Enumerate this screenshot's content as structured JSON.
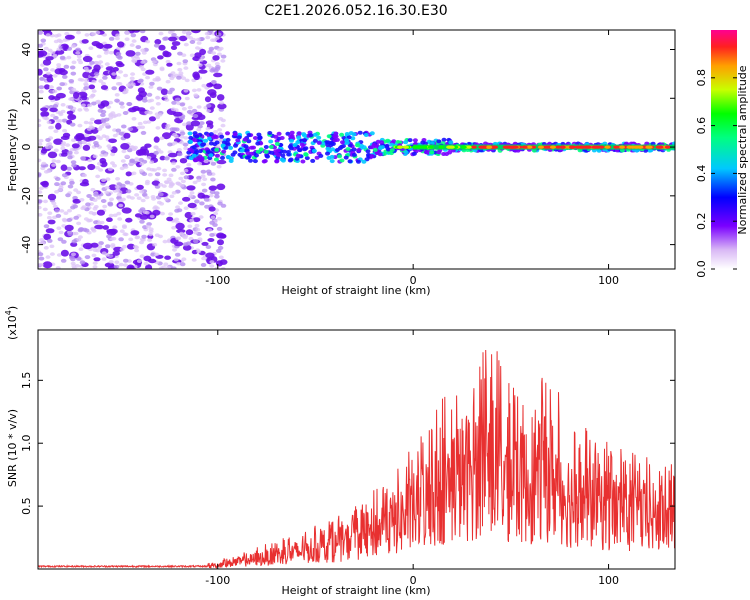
{
  "title": "C2E1.2026.052.16.30.E30",
  "chart_data": [
    {
      "type": "heatmap",
      "title": "C2E1.2026.052.16.30.E30",
      "xlabel": "Height of straight line (km)",
      "ylabel": "Frequency (Hz)",
      "xlim": [
        -192,
        134
      ],
      "ylim": [
        -50,
        48
      ],
      "xticks": [
        -100,
        0,
        100
      ],
      "yticks": [
        -40,
        -20,
        0,
        20,
        40
      ],
      "colorbar": {
        "label": "Normalized spectral amplitude",
        "range": [
          0.0,
          1.0
        ],
        "ticks": [
          "0.0",
          "0.2",
          "0.4",
          "0.6",
          "0.8"
        ]
      },
      "features": {
        "noise_region_x": [
          -192,
          -105
        ],
        "signal_center_freq": 0,
        "signal_region_x": [
          -115,
          134
        ]
      }
    },
    {
      "type": "line",
      "xlabel": "Height of straight line (km)",
      "ylabel": "SNR (10 * v/v)",
      "multiplier": "(x10",
      "multiplier_exp": "4",
      "xlim": [
        -192,
        134
      ],
      "ylim": [
        0,
        1.9
      ],
      "xticks": [
        -100,
        0,
        100
      ],
      "yticks": [
        "0.5",
        "1.0",
        "1.5"
      ],
      "series": [
        {
          "name": "SNR",
          "color": "#e83030",
          "envelope": {
            "x": [
              -192,
              -110,
              -100,
              -80,
              -60,
              -40,
              -30,
              -20,
              0,
              15,
              30,
              40,
              50,
              60,
              70,
              80,
              100,
              120,
              134
            ],
            "y": [
              0.02,
              0.02,
              0.06,
              0.15,
              0.25,
              0.35,
              0.45,
              0.55,
              0.85,
              1.2,
              1.45,
              1.6,
              1.3,
              1.25,
              1.4,
              1.05,
              0.9,
              0.78,
              0.72
            ]
          }
        }
      ]
    }
  ]
}
